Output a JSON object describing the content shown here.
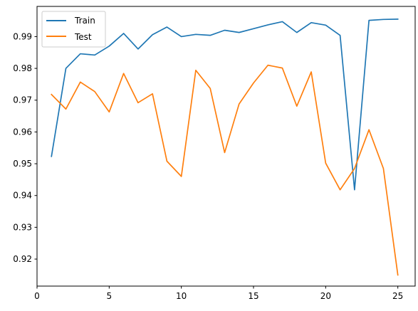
{
  "chart_data": {
    "type": "line",
    "x": [
      1,
      2,
      3,
      4,
      5,
      6,
      7,
      8,
      9,
      10,
      11,
      12,
      13,
      14,
      15,
      16,
      17,
      18,
      19,
      20,
      21,
      22,
      23,
      24,
      25
    ],
    "series": [
      {
        "name": "Train",
        "color": "#1f77b4",
        "values": [
          0.9523,
          0.98,
          0.9846,
          0.9842,
          0.987,
          0.991,
          0.9861,
          0.9906,
          0.993,
          0.99,
          0.9907,
          0.9904,
          0.992,
          0.9913,
          0.9925,
          0.9937,
          0.9947,
          0.9913,
          0.9944,
          0.9936,
          0.9904,
          0.9418,
          0.9951,
          0.9954,
          0.9955
        ]
      },
      {
        "name": "Test",
        "color": "#ff7f0e",
        "values": [
          0.9718,
          0.9672,
          0.9757,
          0.9727,
          0.9663,
          0.9784,
          0.9692,
          0.972,
          0.9508,
          0.946,
          0.9794,
          0.9737,
          0.9535,
          0.9688,
          0.9754,
          0.981,
          0.9801,
          0.9681,
          0.9789,
          0.9502,
          0.9418,
          0.9485,
          0.9607,
          0.9485,
          0.915
        ]
      }
    ],
    "xlim": [
      0,
      26.2
    ],
    "ylim": [
      0.9115,
      0.9995
    ],
    "x_ticks": [
      0,
      5,
      10,
      15,
      20,
      25
    ],
    "y_ticks": [
      0.92,
      0.93,
      0.94,
      0.95,
      0.96,
      0.97,
      0.98,
      0.99
    ],
    "x_tick_labels": [
      "0",
      "5",
      "10",
      "15",
      "20",
      "25"
    ],
    "y_tick_labels": [
      "0.92",
      "0.93",
      "0.94",
      "0.95",
      "0.96",
      "0.97",
      "0.98",
      "0.99"
    ],
    "title": "",
    "xlabel": "",
    "ylabel": "",
    "grid": false,
    "legend": "top-left"
  }
}
